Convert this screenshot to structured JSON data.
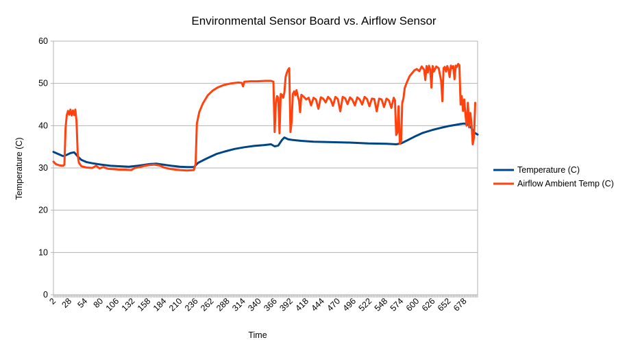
{
  "chart_data": {
    "type": "line",
    "title": "Environmental Sensor Board vs. Airflow Sensor",
    "xlabel": "Time",
    "ylabel": "Temperature (C)",
    "ylim": [
      0,
      60
    ],
    "yticks": [
      0,
      10,
      20,
      30,
      40,
      50,
      60
    ],
    "xlim": [
      2,
      700
    ],
    "xticks": [
      2,
      28,
      54,
      80,
      106,
      132,
      158,
      184,
      210,
      236,
      262,
      288,
      314,
      340,
      366,
      392,
      418,
      444,
      470,
      496,
      522,
      548,
      574,
      600,
      626,
      652,
      678
    ],
    "grid": "horizontal",
    "legend_position": "right",
    "series": [
      {
        "name": "Temperature (C)",
        "color": "#004586",
        "points": [
          [
            2,
            33.8
          ],
          [
            10,
            33.3
          ],
          [
            18,
            32.8
          ],
          [
            24,
            33.1
          ],
          [
            30,
            33.5
          ],
          [
            36,
            33.7
          ],
          [
            38,
            33.4
          ],
          [
            42,
            32.7
          ],
          [
            48,
            31.9
          ],
          [
            56,
            31.4
          ],
          [
            66,
            31.1
          ],
          [
            80,
            30.8
          ],
          [
            96,
            30.5
          ],
          [
            110,
            30.4
          ],
          [
            126,
            30.3
          ],
          [
            140,
            30.5
          ],
          [
            150,
            30.7
          ],
          [
            160,
            30.9
          ],
          [
            172,
            31.0
          ],
          [
            182,
            30.8
          ],
          [
            196,
            30.5
          ],
          [
            210,
            30.3
          ],
          [
            222,
            30.2
          ],
          [
            233,
            30.2
          ],
          [
            240,
            31.2
          ],
          [
            248,
            31.8
          ],
          [
            258,
            32.5
          ],
          [
            270,
            33.3
          ],
          [
            284,
            33.9
          ],
          [
            300,
            34.5
          ],
          [
            316,
            34.9
          ],
          [
            332,
            35.2
          ],
          [
            348,
            35.4
          ],
          [
            360,
            35.6
          ],
          [
            366,
            35.1
          ],
          [
            372,
            35.3
          ],
          [
            378,
            36.6
          ],
          [
            382,
            37.2
          ],
          [
            388,
            36.8
          ],
          [
            396,
            36.6
          ],
          [
            410,
            36.4
          ],
          [
            430,
            36.2
          ],
          [
            460,
            36.1
          ],
          [
            490,
            36.0
          ],
          [
            520,
            35.8
          ],
          [
            550,
            35.7
          ],
          [
            566,
            35.6
          ],
          [
            574,
            35.8
          ],
          [
            584,
            36.5
          ],
          [
            596,
            37.4
          ],
          [
            610,
            38.3
          ],
          [
            626,
            39.0
          ],
          [
            640,
            39.5
          ],
          [
            652,
            39.9
          ],
          [
            664,
            40.2
          ],
          [
            672,
            40.4
          ],
          [
            678,
            40.5
          ],
          [
            684,
            40.3
          ],
          [
            690,
            39.4
          ],
          [
            694,
            38.4
          ],
          [
            700,
            37.9
          ]
        ]
      },
      {
        "name": "Airflow Ambient Temp (C)",
        "color": "#ff420e",
        "points": [
          [
            2,
            31.5
          ],
          [
            6,
            30.9
          ],
          [
            12,
            30.6
          ],
          [
            18,
            30.5
          ],
          [
            20,
            30.8
          ],
          [
            22,
            39.5
          ],
          [
            24,
            42.5
          ],
          [
            26,
            43.5
          ],
          [
            28,
            42.6
          ],
          [
            30,
            43.8
          ],
          [
            32,
            42.4
          ],
          [
            34,
            43.6
          ],
          [
            36,
            42.5
          ],
          [
            38,
            43.8
          ],
          [
            40,
            41.0
          ],
          [
            42,
            33.0
          ],
          [
            44,
            31.2
          ],
          [
            48,
            30.4
          ],
          [
            56,
            30.1
          ],
          [
            66,
            30.0
          ],
          [
            72,
            30.5
          ],
          [
            78,
            29.9
          ],
          [
            84,
            30.2
          ],
          [
            92,
            29.8
          ],
          [
            100,
            29.7
          ],
          [
            110,
            29.6
          ],
          [
            120,
            29.6
          ],
          [
            130,
            29.5
          ],
          [
            136,
            30.0
          ],
          [
            144,
            30.2
          ],
          [
            152,
            30.5
          ],
          [
            160,
            30.7
          ],
          [
            168,
            30.8
          ],
          [
            176,
            30.6
          ],
          [
            184,
            30.1
          ],
          [
            196,
            29.7
          ],
          [
            210,
            29.5
          ],
          [
            222,
            29.4
          ],
          [
            233,
            29.5
          ],
          [
            236,
            31.0
          ],
          [
            238,
            40.5
          ],
          [
            242,
            43.2
          ],
          [
            248,
            45.3
          ],
          [
            256,
            47.2
          ],
          [
            264,
            48.3
          ],
          [
            272,
            49.0
          ],
          [
            282,
            49.6
          ],
          [
            294,
            50.0
          ],
          [
            306,
            50.2
          ],
          [
            312,
            50.1
          ],
          [
            314,
            49.3
          ],
          [
            316,
            50.4
          ],
          [
            326,
            50.5
          ],
          [
            338,
            50.5
          ],
          [
            350,
            50.6
          ],
          [
            360,
            50.6
          ],
          [
            364,
            50.4
          ],
          [
            366,
            38.5
          ],
          [
            368,
            45.2
          ],
          [
            370,
            47.0
          ],
          [
            372,
            46.6
          ],
          [
            374,
            38.2
          ],
          [
            376,
            47.5
          ],
          [
            378,
            47.3
          ],
          [
            380,
            46.6
          ],
          [
            382,
            47.8
          ],
          [
            384,
            51.5
          ],
          [
            386,
            52.5
          ],
          [
            388,
            53.2
          ],
          [
            390,
            53.6
          ],
          [
            392,
            38.5
          ],
          [
            394,
            41.0
          ],
          [
            396,
            47.5
          ],
          [
            398,
            48.1
          ],
          [
            400,
            47.2
          ],
          [
            402,
            48.4
          ],
          [
            404,
            47.0
          ],
          [
            406,
            46.0
          ],
          [
            408,
            43.2
          ],
          [
            410,
            47.3
          ],
          [
            414,
            46.8
          ],
          [
            418,
            46.2
          ],
          [
            422,
            46.6
          ],
          [
            426,
            44.8
          ],
          [
            430,
            46.6
          ],
          [
            434,
            46.2
          ],
          [
            438,
            44.0
          ],
          [
            442,
            46.7
          ],
          [
            446,
            46.4
          ],
          [
            450,
            45.5
          ],
          [
            454,
            46.8
          ],
          [
            458,
            46.2
          ],
          [
            462,
            44.7
          ],
          [
            466,
            46.8
          ],
          [
            470,
            46.3
          ],
          [
            474,
            43.4
          ],
          [
            478,
            46.8
          ],
          [
            482,
            46.5
          ],
          [
            486,
            45.1
          ],
          [
            490,
            46.7
          ],
          [
            494,
            46.1
          ],
          [
            498,
            44.8
          ],
          [
            502,
            46.7
          ],
          [
            506,
            46.2
          ],
          [
            510,
            45.0
          ],
          [
            514,
            46.8
          ],
          [
            518,
            46.3
          ],
          [
            522,
            44.6
          ],
          [
            526,
            46.4
          ],
          [
            530,
            46.3
          ],
          [
            534,
            43.4
          ],
          [
            538,
            46.4
          ],
          [
            542,
            46.2
          ],
          [
            546,
            44.4
          ],
          [
            550,
            46.4
          ],
          [
            554,
            46.0
          ],
          [
            558,
            44.2
          ],
          [
            562,
            46.6
          ],
          [
            564,
            46.0
          ],
          [
            566,
            37.8
          ],
          [
            568,
            38.4
          ],
          [
            570,
            44.6
          ],
          [
            572,
            35.7
          ],
          [
            574,
            36.2
          ],
          [
            576,
            45.4
          ],
          [
            578,
            46.5
          ],
          [
            580,
            48.9
          ],
          [
            584,
            50.4
          ],
          [
            588,
            51.7
          ],
          [
            592,
            52.4
          ],
          [
            596,
            53.1
          ],
          [
            600,
            53.4
          ],
          [
            604,
            52.9
          ],
          [
            608,
            54.0
          ],
          [
            612,
            53.2
          ],
          [
            614,
            50.8
          ],
          [
            616,
            54.1
          ],
          [
            618,
            52.6
          ],
          [
            620,
            54.2
          ],
          [
            622,
            53.3
          ],
          [
            624,
            49.0
          ],
          [
            626,
            54.1
          ],
          [
            628,
            52.8
          ],
          [
            632,
            54.0
          ],
          [
            636,
            53.6
          ],
          [
            640,
            50.6
          ],
          [
            642,
            45.8
          ],
          [
            644,
            53.6
          ],
          [
            646,
            53.9
          ],
          [
            648,
            52.8
          ],
          [
            650,
            54.1
          ],
          [
            652,
            53.3
          ],
          [
            654,
            51.5
          ],
          [
            656,
            54.2
          ],
          [
            658,
            53.6
          ],
          [
            660,
            54.1
          ],
          [
            662,
            51.0
          ],
          [
            664,
            54.2
          ],
          [
            666,
            53.9
          ],
          [
            668,
            54.6
          ],
          [
            670,
            54.3
          ],
          [
            672,
            45.0
          ],
          [
            674,
            47.0
          ],
          [
            676,
            43.5
          ],
          [
            678,
            46.2
          ],
          [
            680,
            42.5
          ],
          [
            682,
            40.0
          ],
          [
            684,
            45.4
          ],
          [
            686,
            39.6
          ],
          [
            688,
            43.0
          ],
          [
            690,
            40.5
          ],
          [
            692,
            35.6
          ],
          [
            694,
            37.2
          ],
          [
            696,
            45.4
          ]
        ]
      }
    ]
  }
}
